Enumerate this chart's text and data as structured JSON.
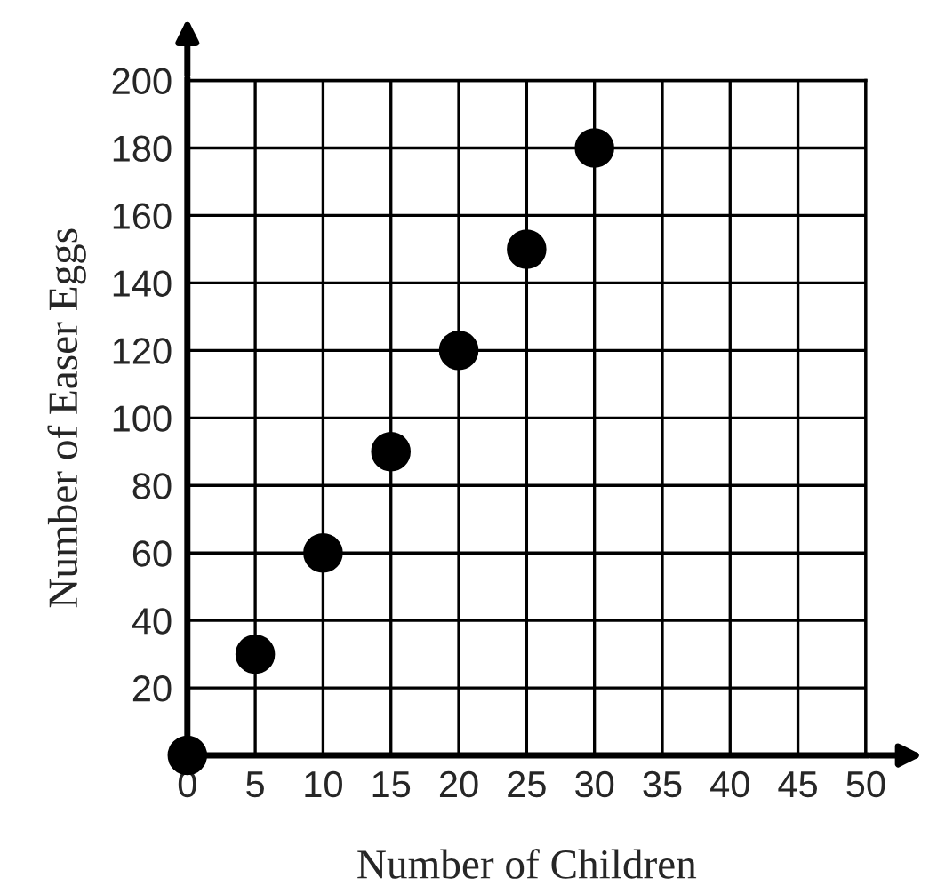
{
  "chart_data": {
    "type": "scatter",
    "xlabel": "Number of Children",
    "ylabel": "Number of Easer Eggs",
    "x": [
      0,
      5,
      10,
      15,
      20,
      25,
      30
    ],
    "values": [
      0,
      30,
      60,
      90,
      120,
      150,
      180
    ],
    "color": "#000000",
    "marker": "circle",
    "xlim": [
      0,
      50
    ],
    "ylim": [
      0,
      200
    ],
    "xticks": [
      0,
      5,
      10,
      15,
      20,
      25,
      30,
      35,
      40,
      45,
      50
    ],
    "yticks": [
      {
        "value": 0,
        "label": null
      },
      20,
      40,
      60,
      80,
      100,
      120,
      140,
      160,
      180,
      200
    ],
    "grid": true
  }
}
